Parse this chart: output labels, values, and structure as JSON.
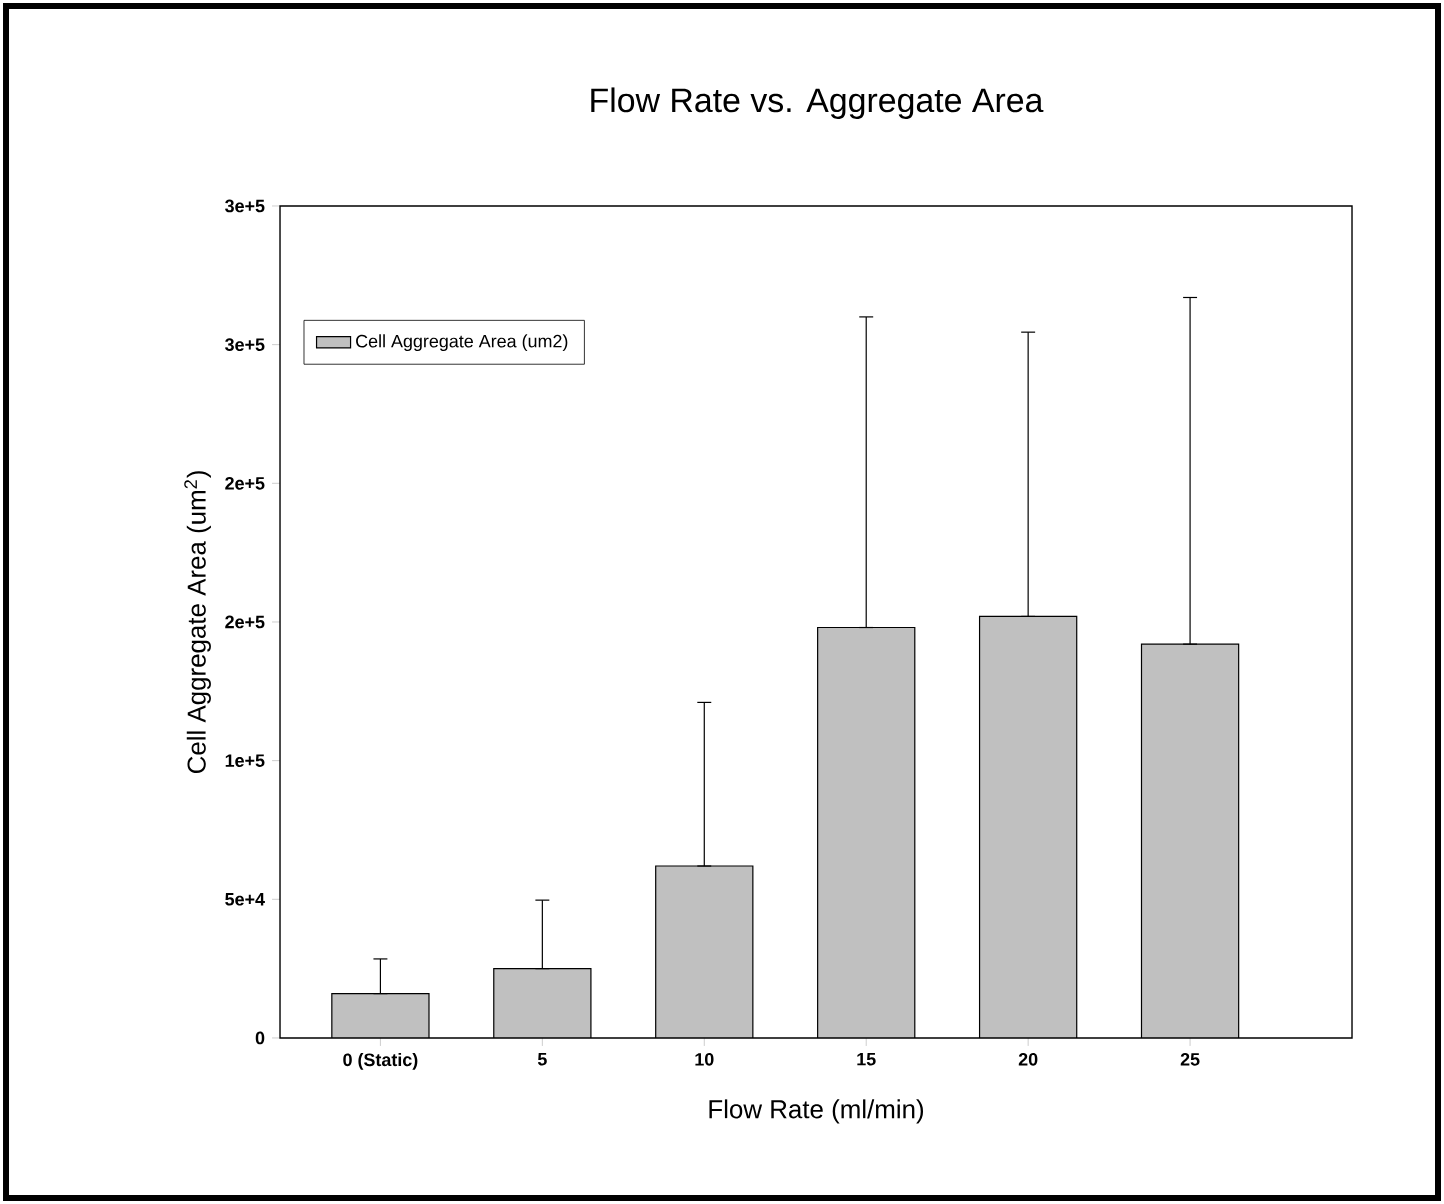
{
  "chart_data": {
    "type": "bar",
    "title": "Flow Rate vs. Aggregate Area",
    "xlabel": "Flow Rate (ml/min)",
    "ylabel": "Cell Aggregate Area (um$^{2}$)",
    "categories": [
      "0 (Static)",
      "5",
      "10",
      "15",
      "20",
      "25"
    ],
    "series": [
      {
        "name": "Cell Aggregate Area (um2)",
        "color": "#c0c0c0",
        "values": [
          16000,
          25000,
          62000,
          148000,
          152000,
          142000
        ],
        "errors": [
          [
            16000,
            28500
          ],
          [
            25000,
            49700
          ],
          [
            62000,
            121000
          ],
          [
            148000,
            260000
          ],
          [
            152000,
            254500
          ],
          [
            142000,
            267000
          ]
        ]
      }
    ],
    "ylim": [
      0,
      300000
    ],
    "yticks": [
      0,
      {
        "value": 50000,
        "label": "5e+4"
      },
      {
        "value": 100000,
        "label": "1e+5"
      },
      {
        "value": 150000,
        "label": "2e+5"
      },
      {
        "value": 200000,
        "label": "2e+5"
      },
      {
        "value": 250000,
        "label": "3e+5"
      },
      {
        "value": 300000,
        "label": "3e+5"
      }
    ],
    "legend": "top left"
  }
}
